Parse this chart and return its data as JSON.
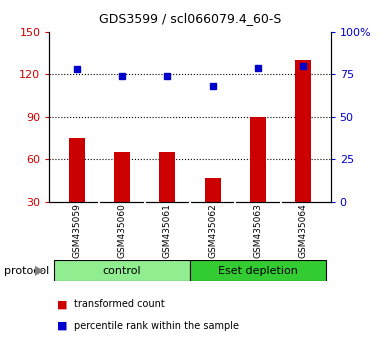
{
  "title": "GDS3599 / scl066079.4_60-S",
  "categories": [
    "GSM435059",
    "GSM435060",
    "GSM435061",
    "GSM435062",
    "GSM435063",
    "GSM435064"
  ],
  "bar_values": [
    75,
    65,
    65,
    47,
    90,
    130
  ],
  "dot_values_pct": [
    78,
    74,
    74,
    68,
    79,
    80
  ],
  "bar_color": "#cc0000",
  "dot_color": "#0000cc",
  "ylim_left": [
    30,
    150
  ],
  "ylim_right": [
    0,
    100
  ],
  "yticks_left": [
    30,
    60,
    90,
    120,
    150
  ],
  "yticks_right": [
    0,
    25,
    50,
    75,
    100
  ],
  "ytick_labels_right": [
    "0",
    "25",
    "50",
    "75",
    "100%"
  ],
  "grid_values": [
    60,
    90,
    120
  ],
  "protocol_groups": [
    {
      "label": "control",
      "indices": [
        0,
        1,
        2
      ],
      "color": "#90ee90"
    },
    {
      "label": "Eset depletion",
      "indices": [
        3,
        4,
        5
      ],
      "color": "#33cc33"
    }
  ],
  "legend_bar_label": "transformed count",
  "legend_dot_label": "percentile rank within the sample",
  "protocol_label": "protocol",
  "bg_color": "#ffffff",
  "tick_area_color": "#c8c8c8",
  "left_axis_color": "#cc0000",
  "right_axis_color": "#0000cc"
}
